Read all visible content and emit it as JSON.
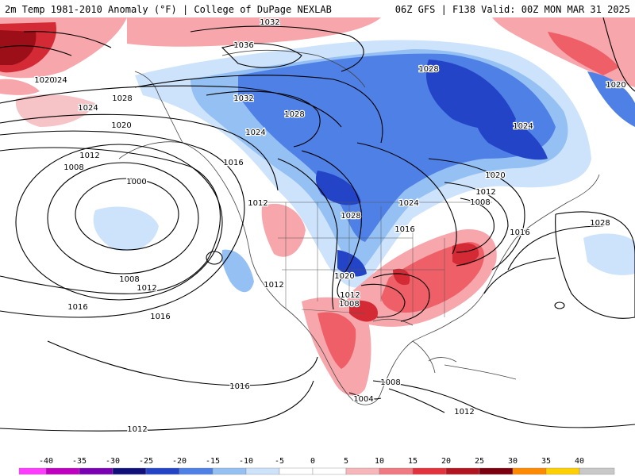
{
  "header": {
    "left_title": "2m Temp 1981-2010 Anomaly (°F) | College of DuPage NEXLAB",
    "right_title": "06Z GFS | F138 Valid: 00Z MON MAR 31 2025"
  },
  "map": {
    "field": "2m temperature anomaly",
    "contour_field": "sea-level pressure isobars",
    "pressure_labels": [
      {
        "text": "1032"
      },
      {
        "text": "1036"
      },
      {
        "text": "1024"
      },
      {
        "text": "1020"
      },
      {
        "text": "1028"
      },
      {
        "text": "1024"
      },
      {
        "text": "1032"
      },
      {
        "text": "1028"
      },
      {
        "text": "1024"
      },
      {
        "text": "1020"
      },
      {
        "text": "1012"
      },
      {
        "text": "1008"
      },
      {
        "text": "1000"
      },
      {
        "text": "1016"
      },
      {
        "text": "1012"
      },
      {
        "text": "1008"
      },
      {
        "text": "1012"
      },
      {
        "text": "1016"
      },
      {
        "text": "1016"
      },
      {
        "text": "1012"
      },
      {
        "text": "1008"
      },
      {
        "text": "1012"
      },
      {
        "text": "1020"
      },
      {
        "text": "1028"
      },
      {
        "text": "1024"
      },
      {
        "text": "1016"
      },
      {
        "text": "1020"
      },
      {
        "text": "1012"
      },
      {
        "text": "1008"
      },
      {
        "text": "1016"
      },
      {
        "text": "1028"
      },
      {
        "text": "1028"
      },
      {
        "text": "1020"
      },
      {
        "text": "1024"
      },
      {
        "text": "1008"
      },
      {
        "text": "1004"
      },
      {
        "text": "1016"
      },
      {
        "text": "1012"
      },
      {
        "text": "1012"
      }
    ],
    "colors": {
      "ocean_warm": "#f6c4c6",
      "warm_1": "#f7a6ab",
      "warm_2": "#ef5f67",
      "warm_3": "#d42a35",
      "warm_4": "#9c0f18",
      "cool_1": "#cde2fb",
      "cool_2": "#94c0f3",
      "cool_3": "#4f80e6",
      "cool_4": "#2444c8",
      "neutral": "#ffffff",
      "coast": "#444444",
      "isobar": "#000000"
    }
  },
  "colorbar": {
    "ticks": [
      "-40",
      "-35",
      "-30",
      "-25",
      "-20",
      "-15",
      "-10",
      "-5",
      "0",
      "5",
      "10",
      "15",
      "20",
      "25",
      "30",
      "35",
      "40"
    ],
    "colors": [
      "#ff3cff",
      "#c000c0",
      "#7a00b3",
      "#10107a",
      "#2444c8",
      "#4f80e6",
      "#94c0f3",
      "#cde2fb",
      "#ffffff",
      "#ffffff",
      "#f7b6ba",
      "#ef7a81",
      "#e2323d",
      "#b01520",
      "#7a0010",
      "#ff8a00",
      "#ffd000",
      "#c8c8c8"
    ]
  }
}
